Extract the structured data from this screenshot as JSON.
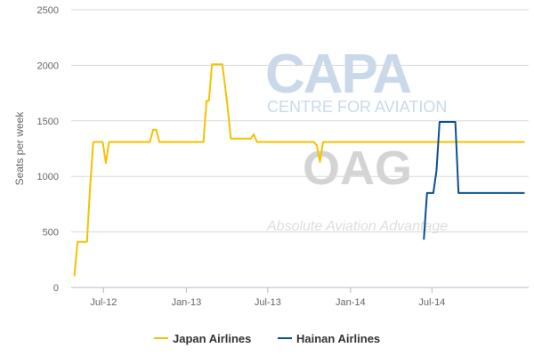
{
  "chart_data": {
    "type": "line",
    "ylabel": "Seats per week",
    "ylim": [
      0,
      2500
    ],
    "yticks": [
      0,
      500,
      1000,
      1500,
      2000,
      2500
    ],
    "xlim": [
      "2012-04-20",
      "2015-02-01"
    ],
    "xticks": [
      {
        "label": "Jul-12",
        "date": "2012-07-01"
      },
      {
        "label": "Jan-13",
        "date": "2013-01-01"
      },
      {
        "label": "Jul-13",
        "date": "2013-07-01"
      },
      {
        "label": "Jan-14",
        "date": "2014-01-01"
      },
      {
        "label": "Jul-14",
        "date": "2014-07-01"
      }
    ],
    "grid": "horizontal",
    "legend": "bottom-center",
    "series": [
      {
        "name": "Japan Airlines",
        "color": "#f5c200",
        "points": [
          [
            "2012-04-27",
            100
          ],
          [
            "2012-05-04",
            410
          ],
          [
            "2012-05-25",
            410
          ],
          [
            "2012-06-01",
            900
          ],
          [
            "2012-06-08",
            1310
          ],
          [
            "2012-06-29",
            1310
          ],
          [
            "2012-07-06",
            1120
          ],
          [
            "2012-07-13",
            1310
          ],
          [
            "2012-10-12",
            1310
          ],
          [
            "2012-10-19",
            1420
          ],
          [
            "2012-10-26",
            1420
          ],
          [
            "2012-11-02",
            1310
          ],
          [
            "2013-02-08",
            1310
          ],
          [
            "2013-02-15",
            1680
          ],
          [
            "2013-02-20",
            1680
          ],
          [
            "2013-02-27",
            2010
          ],
          [
            "2013-03-22",
            2010
          ],
          [
            "2013-04-02",
            1650
          ],
          [
            "2013-04-10",
            1340
          ],
          [
            "2013-05-24",
            1340
          ],
          [
            "2013-05-31",
            1380
          ],
          [
            "2013-06-07",
            1310
          ],
          [
            "2013-10-11",
            1310
          ],
          [
            "2013-10-18",
            1280
          ],
          [
            "2013-10-25",
            1130
          ],
          [
            "2013-11-01",
            1310
          ],
          [
            "2015-01-23",
            1310
          ]
        ]
      },
      {
        "name": "Hainan Airlines",
        "color": "#0c4f8c",
        "points": [
          [
            "2014-06-13",
            430
          ],
          [
            "2014-06-20",
            850
          ],
          [
            "2014-07-04",
            850
          ],
          [
            "2014-07-11",
            1050
          ],
          [
            "2014-07-18",
            1490
          ],
          [
            "2014-08-22",
            1490
          ],
          [
            "2014-08-29",
            850
          ],
          [
            "2015-01-23",
            850
          ]
        ]
      }
    ]
  },
  "watermark": {
    "capa_title": "CAPA",
    "capa_subtitle": "CENTRE FOR AVIATION",
    "oag_title": "OAG",
    "oag_subtitle": "Absolute Aviation Advantage"
  }
}
